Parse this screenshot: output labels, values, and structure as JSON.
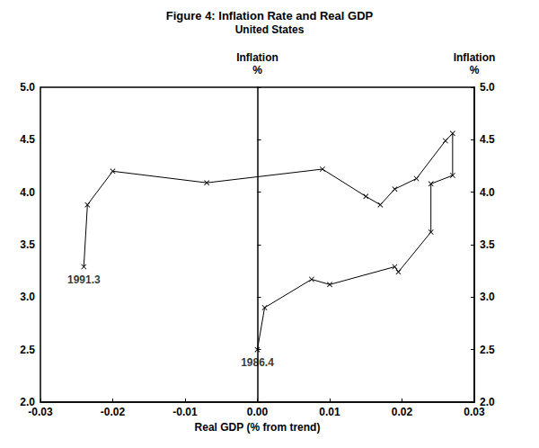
{
  "chart_data": {
    "type": "line",
    "title": "Figure 4: Inflation Rate and Real GDP",
    "subtitle": "United States",
    "xlabel": "Real GDP (% from trend)",
    "ylabel": "Inflation\n%",
    "y2label": "Inflation\n%",
    "x": [
      0.0,
      0.001,
      0.0075,
      0.01,
      0.019,
      0.0195,
      0.024,
      0.024,
      0.027,
      0.027,
      0.026,
      0.022,
      0.019,
      0.017,
      0.015,
      0.009,
      -0.007,
      -0.02,
      -0.0235,
      -0.024
    ],
    "values": [
      2.5,
      2.9,
      3.17,
      3.12,
      3.29,
      3.24,
      3.62,
      4.08,
      4.16,
      4.56,
      4.49,
      4.13,
      4.03,
      3.88,
      3.96,
      4.22,
      4.09,
      4.2,
      3.88,
      3.29
    ],
    "color": "#000000",
    "marker": "x",
    "line_style": "solid",
    "xlim": [
      -0.03,
      0.03
    ],
    "xticks": [
      -0.03,
      -0.02,
      -0.01,
      {
        "value": 0,
        "label": "0.00"
      },
      0.01,
      0.02,
      0.03
    ],
    "ylim": [
      2.0,
      5.0
    ],
    "yticks": [
      {
        "value": 2,
        "label": "2.0"
      },
      2.5,
      {
        "value": 3,
        "label": "3.0"
      },
      3.5,
      {
        "value": 4,
        "label": "4.0"
      },
      4.5,
      {
        "value": 5,
        "label": "5.0"
      }
    ],
    "y2lim": [
      2.0,
      5.0
    ],
    "y2ticks": [
      {
        "value": 2,
        "label": "2.0"
      },
      2.5,
      {
        "value": 3,
        "label": "3.0"
      },
      3.5,
      {
        "value": 4,
        "label": "4.0"
      },
      4.5,
      {
        "value": 5,
        "label": "5.0"
      }
    ],
    "annotations": [
      {
        "text": "1991.3",
        "x": -0.024,
        "y": 3.29
      },
      {
        "text": "1986.4",
        "x": 0.0,
        "y": 2.5
      }
    ],
    "grid": false
  }
}
